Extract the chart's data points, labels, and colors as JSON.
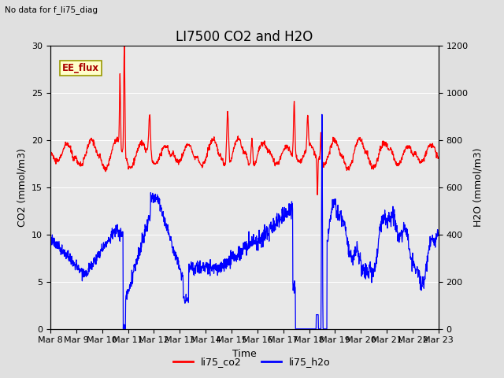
{
  "title": "LI7500 CO2 and H2O",
  "top_left_text": "No data for f_li75_diag",
  "xlabel": "Time",
  "ylabel_left": "CO2 (mmol/m3)",
  "ylabel_right": "H2O (mmol/m3)",
  "ylim_left": [
    0,
    30
  ],
  "ylim_right": [
    0,
    1200
  ],
  "yticks_left": [
    0,
    5,
    10,
    15,
    20,
    25,
    30
  ],
  "yticks_right": [
    0,
    200,
    400,
    600,
    800,
    1000,
    1200
  ],
  "xtick_labels": [
    "Mar 8",
    "Mar 9",
    "Mar 10",
    "Mar 11",
    "Mar 12",
    "Mar 13",
    "Mar 14",
    "Mar 15",
    "Mar 16",
    "Mar 17",
    "Mar 18",
    "Mar 19",
    "Mar 20",
    "Mar 21",
    "Mar 22",
    "Mar 23"
  ],
  "co2_color": "red",
  "h2o_color": "blue",
  "fig_bg_color": "#e0e0e0",
  "plot_bg_color": "#d4d4d4",
  "plot_bg_inner": "#e8e8e8",
  "legend_label_co2": "li75_co2",
  "legend_label_h2o": "li75_h2o",
  "ee_flux_label": "EE_flux",
  "ee_flux_box_color": "#ffffcc",
  "ee_flux_text_color": "#aa0000",
  "title_fontsize": 12,
  "axis_label_fontsize": 9,
  "tick_fontsize": 8
}
